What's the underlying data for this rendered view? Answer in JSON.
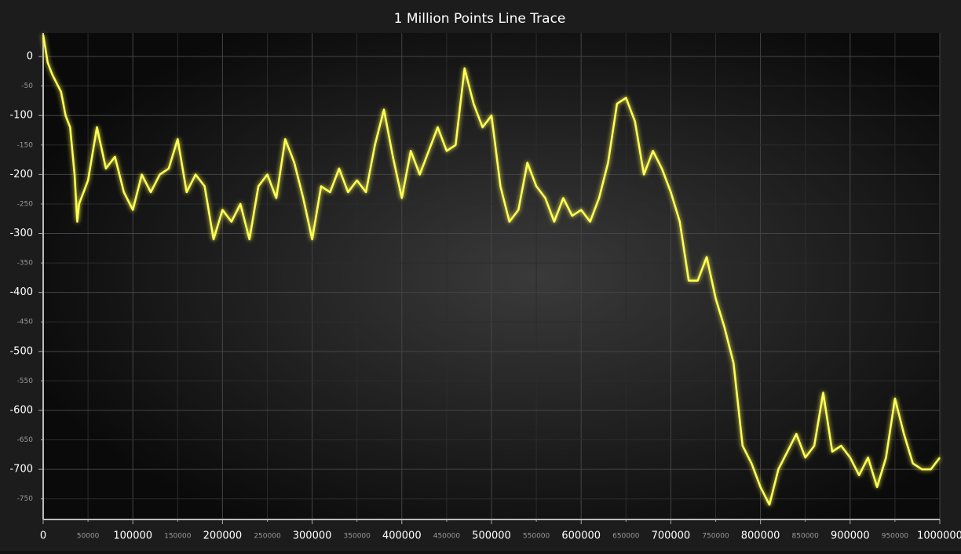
{
  "chart_data": {
    "type": "line",
    "title": "1 Million Points Line Trace",
    "color": "#ffff55",
    "grid": true,
    "x": [
      0,
      5000,
      10000,
      20000,
      25000,
      30000,
      35000,
      38000,
      40000,
      50000,
      60000,
      70000,
      80000,
      90000,
      100000,
      110000,
      120000,
      130000,
      140000,
      150000,
      160000,
      170000,
      180000,
      190000,
      200000,
      210000,
      220000,
      230000,
      240000,
      250000,
      260000,
      270000,
      280000,
      290000,
      300000,
      310000,
      320000,
      330000,
      340000,
      350000,
      360000,
      370000,
      380000,
      390000,
      400000,
      410000,
      420000,
      430000,
      440000,
      450000,
      460000,
      470000,
      480000,
      490000,
      500000,
      510000,
      520000,
      530000,
      540000,
      550000,
      560000,
      570000,
      580000,
      590000,
      600000,
      610000,
      620000,
      630000,
      640000,
      650000,
      660000,
      670000,
      680000,
      690000,
      700000,
      710000,
      720000,
      730000,
      740000,
      750000,
      760000,
      770000,
      780000,
      790000,
      800000,
      810000,
      820000,
      830000,
      840000,
      850000,
      860000,
      870000,
      880000,
      890000,
      900000,
      910000,
      920000,
      930000,
      940000,
      950000,
      960000,
      970000,
      980000,
      990000,
      1000000
    ],
    "values": [
      37,
      -10,
      -30,
      -60,
      -100,
      -120,
      -200,
      -280,
      -250,
      -210,
      -120,
      -190,
      -170,
      -230,
      -260,
      -200,
      -230,
      -200,
      -190,
      -140,
      -230,
      -200,
      -220,
      -310,
      -260,
      -280,
      -250,
      -310,
      -220,
      -200,
      -240,
      -140,
      -180,
      -240,
      -310,
      -220,
      -230,
      -190,
      -230,
      -210,
      -230,
      -150,
      -90,
      -170,
      -240,
      -160,
      -200,
      -160,
      -120,
      -160,
      -150,
      -20,
      -80,
      -120,
      -100,
      -220,
      -280,
      -260,
      -180,
      -220,
      -240,
      -280,
      -240,
      -270,
      -260,
      -280,
      -240,
      -180,
      -80,
      -70,
      -110,
      -200,
      -160,
      -190,
      -230,
      -280,
      -380,
      -380,
      -340,
      -410,
      -460,
      -520,
      -660,
      -690,
      -730,
      -760,
      -700,
      -670,
      -640,
      -680,
      -660,
      -570,
      -670,
      -660,
      -680,
      -710,
      -680,
      -730,
      -680,
      -580,
      -640,
      -690,
      -700,
      -700,
      -680
    ],
    "xlim": [
      0,
      1000000
    ],
    "ylim": [
      -785,
      40
    ],
    "xticks": [
      0,
      100000,
      200000,
      300000,
      400000,
      500000,
      600000,
      700000,
      800000,
      900000,
      1000000
    ],
    "xticks_minor": [
      50000,
      150000,
      250000,
      350000,
      450000,
      550000,
      650000,
      750000,
      850000,
      950000
    ],
    "yticks": [
      0,
      -100,
      -200,
      -300,
      -400,
      -500,
      -600,
      -700
    ],
    "yticks_minor": [
      -50,
      -150,
      -250,
      -350,
      -450,
      -550,
      -650,
      -750
    ]
  }
}
